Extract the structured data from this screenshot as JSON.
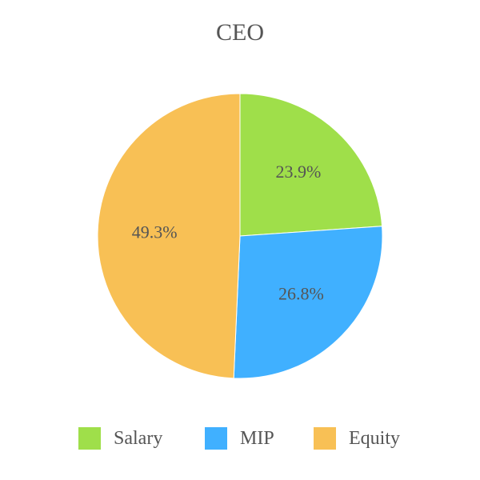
{
  "chart_data": {
    "type": "pie",
    "title": "CEO",
    "slices": [
      {
        "name": "Salary",
        "value": 23.9,
        "label": "23.9%",
        "color": "#9fdf4a"
      },
      {
        "name": "MIP",
        "value": 26.8,
        "label": "26.8%",
        "color": "#40b0ff"
      },
      {
        "name": "Equity",
        "value": 49.3,
        "label": "49.3%",
        "color": "#f8c055"
      }
    ],
    "start_angle": "top",
    "direction": "clockwise",
    "legend_position": "bottom"
  }
}
